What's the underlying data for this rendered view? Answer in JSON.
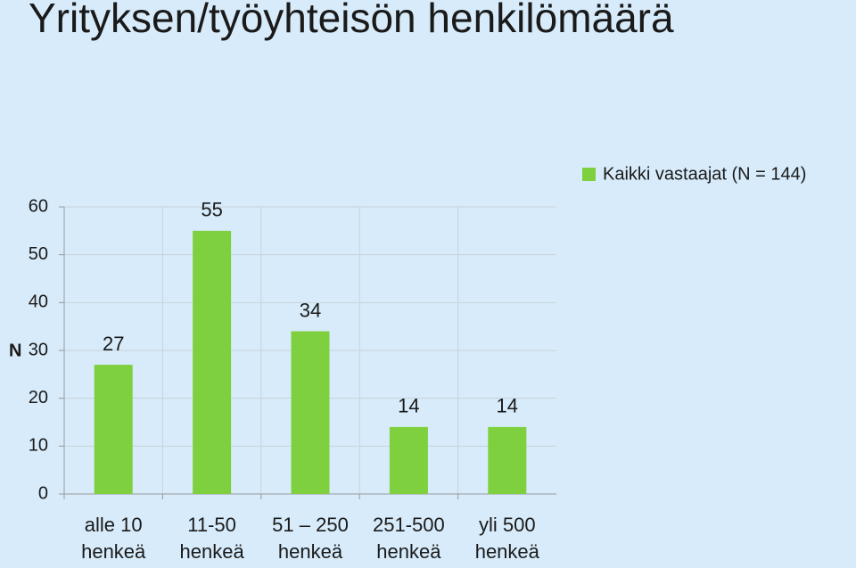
{
  "chart_data": {
    "type": "bar",
    "title": "Yrityksen/työyhteisön henkilömäärä",
    "y_label": "N",
    "categories": [
      "alle 10 henkeä",
      "11-50 henkeä",
      "51 – 250 henkeä",
      "251-500 henkeä",
      "yli 500 henkeä"
    ],
    "series": [
      {
        "name": "Kaikki vastaajat (N = 144)",
        "color": "#7ed03e",
        "values": [
          27,
          55,
          34,
          14,
          14
        ]
      }
    ],
    "ylim": [
      0,
      60
    ],
    "yticks": [
      0,
      10,
      20,
      30,
      40,
      50,
      60
    ],
    "grid": true,
    "legend": "top-right"
  }
}
